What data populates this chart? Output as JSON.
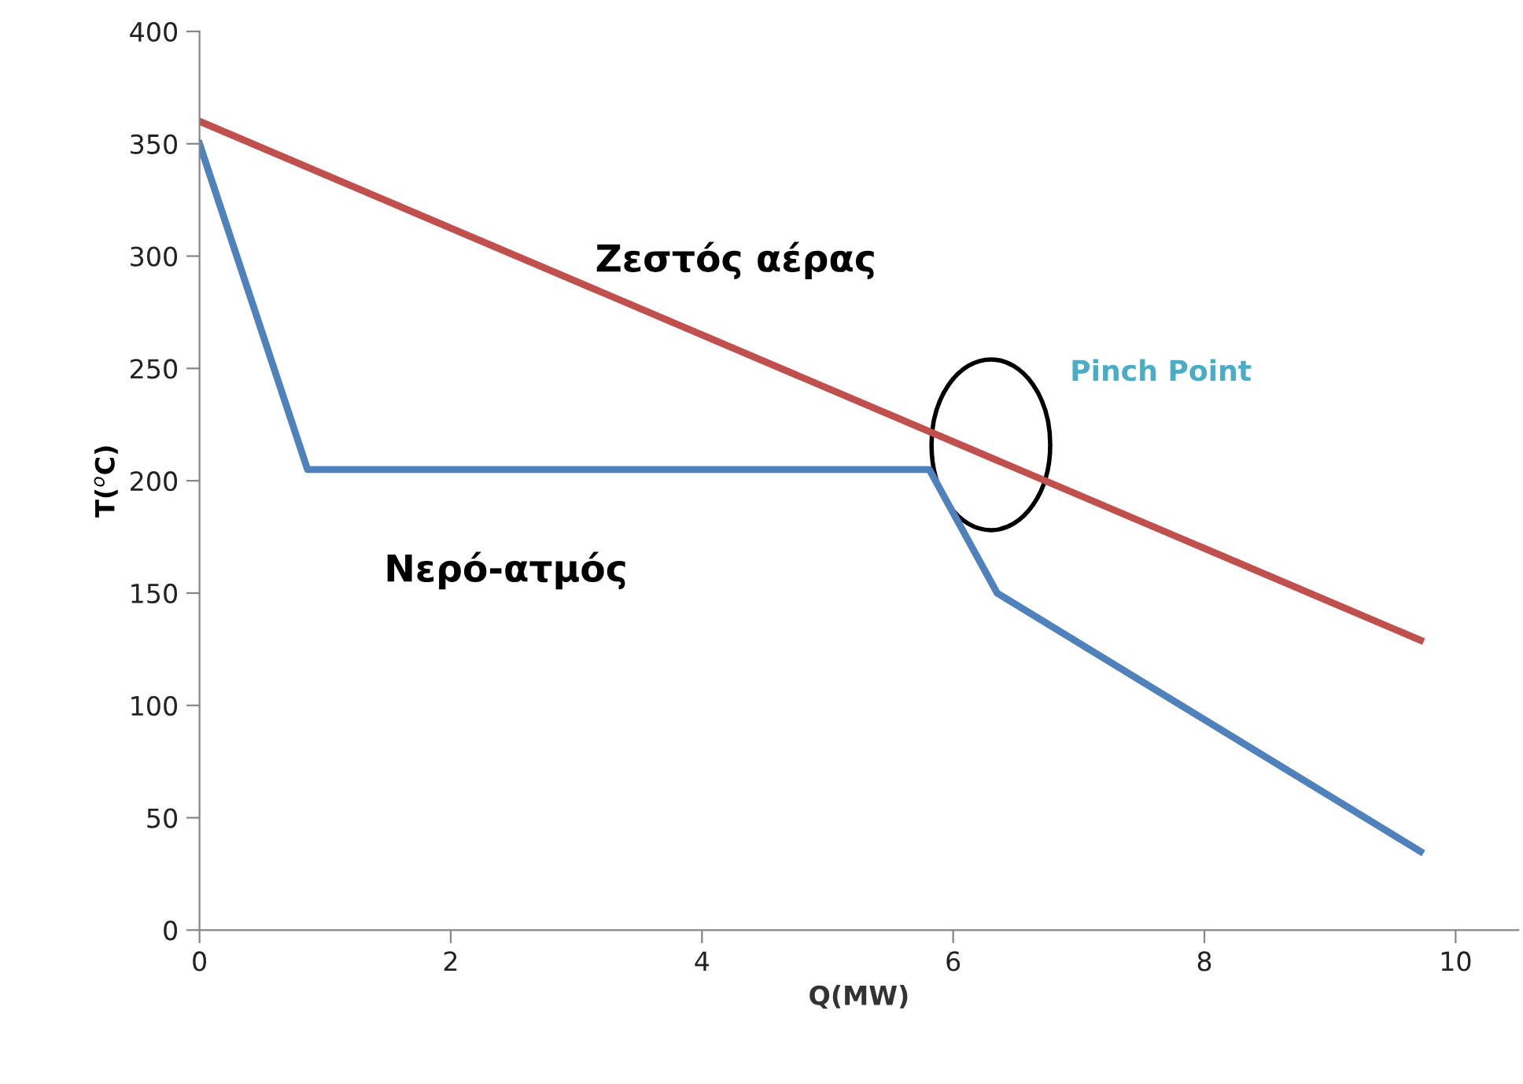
{
  "chart_data": {
    "type": "line",
    "xlabel": "Q(MW)",
    "ylabel": "T($^{o}$C)",
    "xlim": [
      0,
      10.5
    ],
    "ylim": [
      0,
      400
    ],
    "xticks": [
      0,
      2,
      4,
      6,
      8,
      10
    ],
    "yticks": [
      0,
      50,
      100,
      150,
      200,
      250,
      300,
      350,
      400
    ],
    "grid": false,
    "legend": false,
    "marker": "none",
    "line_style": "solid",
    "series": [
      {
        "name": "Ζεστός αέρας",
        "color": "#c0504d",
        "x": [
          0,
          9.72
        ],
        "values": [
          360,
          129
        ]
      },
      {
        "name": "Νερό-ατμός",
        "color": "#4f81bd",
        "x": [
          0,
          0.86,
          5.81,
          6.35,
          9.72
        ],
        "values": [
          350,
          205,
          205,
          150,
          35
        ]
      }
    ],
    "annotations": [
      "Pinch Point"
    ]
  }
}
